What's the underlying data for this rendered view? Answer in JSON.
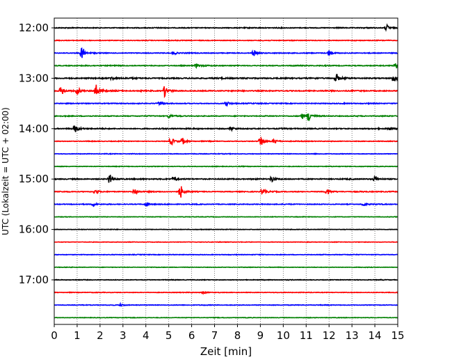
{
  "chart_data": {
    "type": "line",
    "subtype": "seismogram-helicorder",
    "xlabel": "Zeit  [min]",
    "ylabel": "UTC (Lokalzeit = UTC + 02:00)",
    "xlim": [
      0,
      15
    ],
    "x_ticks": [
      0,
      1,
      2,
      3,
      4,
      5,
      6,
      7,
      8,
      9,
      10,
      11,
      12,
      13,
      14,
      15
    ],
    "y_tick_labels": [
      "12:00",
      "13:00",
      "14:00",
      "15:00",
      "16:00",
      "17:00"
    ],
    "trace_start_times": [
      "12:00",
      "12:15",
      "12:30",
      "12:45",
      "13:00",
      "13:15",
      "13:30",
      "13:45",
      "14:00",
      "14:15",
      "14:30",
      "14:45",
      "15:00",
      "15:15",
      "15:30",
      "15:45",
      "16:00",
      "16:15",
      "16:30",
      "16:45",
      "17:00",
      "17:15",
      "17:30",
      "17:45"
    ],
    "trace_colors": [
      "#000000",
      "#ff0000",
      "#0000ff",
      "#008000"
    ],
    "grid": "x-dotted",
    "events": [
      [
        [
          14.5,
          1.0
        ]
      ],
      [],
      [
        [
          1.2,
          2.2
        ],
        [
          5.2,
          0.6
        ],
        [
          8.7,
          1.0
        ],
        [
          12.0,
          1.2
        ]
      ],
      [
        [
          6.2,
          0.7
        ],
        [
          14.9,
          1.0
        ]
      ],
      [
        [
          12.3,
          1.3
        ],
        [
          14.8,
          1.5
        ],
        [
          2.5,
          0.5
        ]
      ],
      [
        [
          0.3,
          1.5
        ],
        [
          1.0,
          1.3
        ],
        [
          1.8,
          2.4
        ],
        [
          4.8,
          2.0
        ]
      ],
      [
        [
          4.6,
          0.6
        ],
        [
          7.5,
          0.7
        ]
      ],
      [
        [
          11.1,
          1.8
        ],
        [
          10.8,
          0.9
        ],
        [
          5.0,
          0.6
        ]
      ],
      [
        [
          0.9,
          1.2
        ],
        [
          7.7,
          0.8
        ],
        [
          14.6,
          0.5
        ]
      ],
      [
        [
          5.1,
          1.2
        ],
        [
          5.6,
          1.0
        ],
        [
          9.0,
          2.0
        ],
        [
          9.6,
          0.8
        ]
      ],
      [],
      [],
      [
        [
          2.4,
          1.8
        ],
        [
          5.2,
          0.9
        ],
        [
          9.5,
          1.0
        ],
        [
          14.0,
          1.0
        ]
      ],
      [
        [
          5.5,
          2.1
        ],
        [
          1.8,
          0.8
        ],
        [
          3.5,
          1.0
        ],
        [
          9.1,
          1.0
        ],
        [
          11.9,
          1.1
        ]
      ],
      [
        [
          1.7,
          0.7
        ],
        [
          4.0,
          0.7
        ],
        [
          13.5,
          0.6
        ]
      ],
      [],
      [],
      [],
      [],
      [],
      [],
      [
        [
          6.5,
          0.4
        ]
      ],
      [
        [
          2.9,
          0.5
        ]
      ],
      []
    ],
    "noise_levels": [
      0.5,
      0.4,
      0.45,
      0.5,
      0.7,
      0.6,
      0.5,
      0.5,
      0.6,
      0.4,
      0.35,
      0.35,
      0.6,
      0.5,
      0.45,
      0.3,
      0.3,
      0.3,
      0.35,
      0.3,
      0.35,
      0.35,
      0.35,
      0.3
    ]
  }
}
